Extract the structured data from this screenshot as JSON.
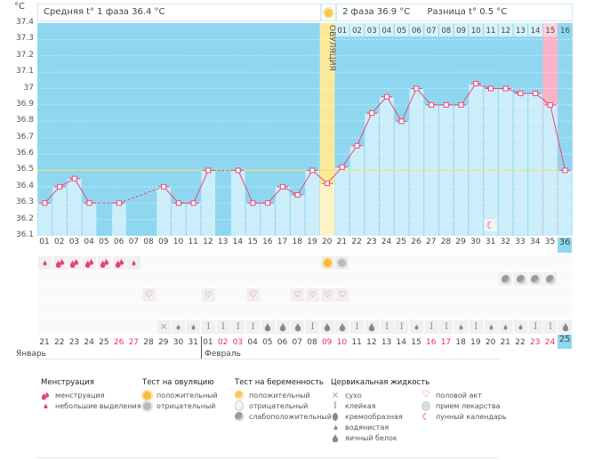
{
  "header": {
    "unit": "°C",
    "phase1": "Средняя t° 1 фаза 36.4 °C",
    "phase2": "2 фаза 36.9 °C",
    "difference": "Разница t° 0.5 °C"
  },
  "chart_data": {
    "type": "line",
    "title": "",
    "ylabel": "°C",
    "ylim": [
      36.1,
      37.4
    ],
    "yticks": [
      "37.4",
      "37.3",
      "37.2",
      "37.1",
      "37",
      "36.9",
      "36.8",
      "36.7",
      "36.6",
      "36.5",
      "36.4",
      "36.3",
      "36.2",
      "36.1"
    ],
    "grid": true,
    "x": [
      "01",
      "02",
      "03",
      "04",
      "05",
      "06",
      "07",
      "08",
      "09",
      "10",
      "11",
      "12",
      "13",
      "14",
      "15",
      "16",
      "17",
      "18",
      "19",
      "20",
      "21",
      "22",
      "23",
      "24",
      "25",
      "26",
      "27",
      "28",
      "29",
      "30",
      "31",
      "32",
      "33",
      "34",
      "35",
      "36"
    ],
    "temperatures": [
      36.3,
      36.4,
      36.45,
      36.3,
      null,
      36.3,
      null,
      null,
      36.4,
      36.3,
      36.3,
      36.5,
      null,
      36.5,
      36.3,
      36.3,
      36.4,
      36.35,
      36.5,
      36.42,
      36.52,
      36.65,
      36.85,
      36.95,
      36.8,
      37.0,
      36.9,
      36.9,
      36.9,
      37.03,
      37.0,
      37.0,
      36.97,
      36.97,
      36.9,
      36.5
    ],
    "coverline": 36.5,
    "ovulation_day": 20,
    "ovulation_label": "ОВУЛЯЦИЯ",
    "phase2_days": [
      "01",
      "02",
      "03",
      "04",
      "05",
      "06",
      "07",
      "08",
      "09",
      "10",
      "11",
      "12",
      "13",
      "14",
      "15",
      "16"
    ],
    "highlight_phase2_day": "15",
    "current_day": "36",
    "lunar_day": 31
  },
  "colors": {
    "bg_dark": "#8fd7f1",
    "bar_light": "#ccedfa",
    "line": "#e84a78",
    "coverline": "#f3e46a",
    "ovulation": "#fbe99a",
    "pink": "#f9b3c6"
  },
  "rows": {
    "menstruation": {
      "1": "light",
      "2": "heavy",
      "3": "heavy",
      "4": "heavy",
      "5": "heavy",
      "6": "heavy",
      "7": "light"
    },
    "ovulation_test": {
      "20": "positive",
      "21": "negative"
    },
    "pregnancy_test": {
      "32": "weak",
      "33": "weak",
      "34": "weak",
      "35": "weak"
    },
    "intercourse": [
      8,
      12,
      15,
      18,
      19,
      20,
      21
    ],
    "cervical": {
      "9": "dry",
      "10": "watery",
      "11": "watery",
      "12": "sticky",
      "13": "sticky",
      "14": "sticky",
      "15": "sticky",
      "16": "egg",
      "17": "egg",
      "18": "egg",
      "19": "sticky",
      "20": "egg",
      "21": "egg",
      "22": "sticky",
      "23": "egg",
      "24": "sticky",
      "25": "sticky",
      "26": "watery",
      "27": "sticky",
      "28": "sticky",
      "29": "watery",
      "30": "sticky",
      "31": "watery",
      "32": "watery",
      "33": "watery",
      "34": "sticky",
      "35": "sticky",
      "36": "egg"
    }
  },
  "dates": [
    {
      "d": "21"
    },
    {
      "d": "22"
    },
    {
      "d": "23"
    },
    {
      "d": "24"
    },
    {
      "d": "25"
    },
    {
      "d": "26",
      "red": true
    },
    {
      "d": "27",
      "red": true
    },
    {
      "d": "28"
    },
    {
      "d": "29"
    },
    {
      "d": "30"
    },
    {
      "d": "31"
    },
    {
      "d": "01"
    },
    {
      "d": "02",
      "red": true
    },
    {
      "d": "03",
      "red": true
    },
    {
      "d": "04"
    },
    {
      "d": "05"
    },
    {
      "d": "06"
    },
    {
      "d": "07"
    },
    {
      "d": "08"
    },
    {
      "d": "09",
      "red": true
    },
    {
      "d": "10",
      "red": true
    },
    {
      "d": "11"
    },
    {
      "d": "12"
    },
    {
      "d": "13"
    },
    {
      "d": "14"
    },
    {
      "d": "15"
    },
    {
      "d": "16",
      "red": true
    },
    {
      "d": "17",
      "red": true
    },
    {
      "d": "18"
    },
    {
      "d": "19"
    },
    {
      "d": "20"
    },
    {
      "d": "21"
    },
    {
      "d": "22"
    },
    {
      "d": "23",
      "red": true
    },
    {
      "d": "24",
      "red": true
    },
    {
      "d": "25",
      "today": true
    }
  ],
  "months": {
    "jan": "Январь",
    "feb": "Февраль"
  },
  "legend": {
    "menstruation": {
      "title": "Менструация",
      "items": [
        "менструация",
        "небольшие выделения"
      ]
    },
    "ovulation_test": {
      "title": "Тест на овуляцию",
      "items": [
        "положительный",
        "отрицательный"
      ]
    },
    "pregnancy_test": {
      "title": "Тест на беременность",
      "items": [
        "положительный",
        "отрицательный",
        "слабоположительный"
      ]
    },
    "cervical": {
      "title": "Цервикальная жидкость",
      "items": [
        "сухо",
        "клейкая",
        "кремообразная",
        "водянистая",
        "яичный белок"
      ]
    },
    "other": {
      "items": [
        "половой акт",
        "прием лекарства",
        "лунный календарь"
      ]
    }
  }
}
